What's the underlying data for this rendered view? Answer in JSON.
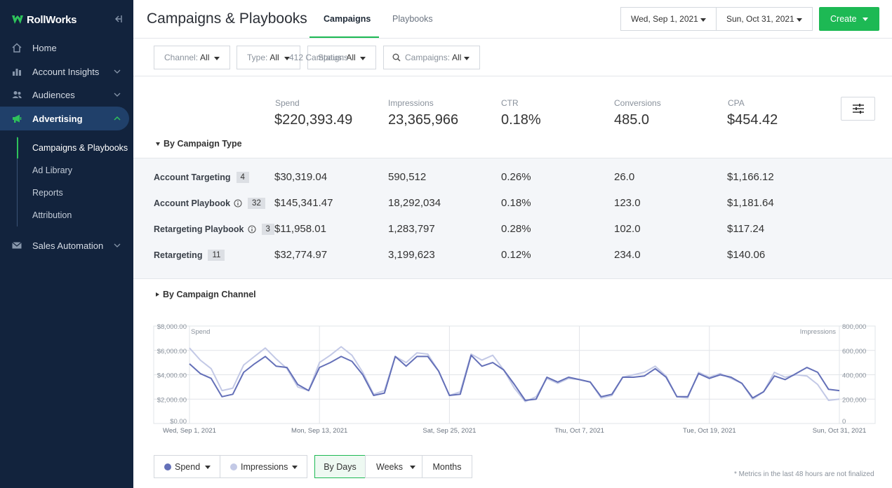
{
  "app": {
    "logo_text": "RollWorks"
  },
  "sidebar": {
    "items": [
      {
        "label": "Home",
        "icon": "home-icon"
      },
      {
        "label": "Account Insights",
        "icon": "bar-chart-icon"
      },
      {
        "label": "Audiences",
        "icon": "users-icon"
      },
      {
        "label": "Advertising",
        "icon": "megaphone-icon"
      },
      {
        "label": "Sales Automation",
        "icon": "mail-icon"
      }
    ],
    "advertising_sub": [
      "Campaigns & Playbooks",
      "Ad Library",
      "Reports",
      "Attribution"
    ]
  },
  "header": {
    "title": "Campaigns & Playbooks",
    "tabs": [
      "Campaigns",
      "Playbooks"
    ],
    "start_date": "Wed, Sep 1, 2021",
    "end_date": "Sun, Oct 31, 2021",
    "create_label": "Create"
  },
  "filters": {
    "channel": {
      "label": "Channel:",
      "value": "All"
    },
    "type": {
      "label": "Type:",
      "value": "All"
    },
    "status": {
      "label": "Status:",
      "value": "All"
    },
    "campaigns": {
      "label": "Campaigns:",
      "value": "All"
    },
    "count": "412 Campaigns"
  },
  "summary": {
    "metrics": [
      {
        "label": "Spend",
        "value": "$220,393.49"
      },
      {
        "label": "Impressions",
        "value": "23,365,966"
      },
      {
        "label": "CTR",
        "value": "0.18%"
      },
      {
        "label": "Conversions",
        "value": "485.0"
      },
      {
        "label": "CPA",
        "value": "$454.42"
      }
    ]
  },
  "by_type": {
    "label": "By Campaign Type",
    "rows": [
      {
        "name": "Account Targeting",
        "count": "4",
        "info": false,
        "spend": "$30,319.04",
        "impressions": "590,512",
        "ctr": "0.26%",
        "conversions": "26.0",
        "cpa": "$1,166.12"
      },
      {
        "name": "Account Playbook",
        "count": "32",
        "info": true,
        "spend": "$145,341.47",
        "impressions": "18,292,034",
        "ctr": "0.18%",
        "conversions": "123.0",
        "cpa": "$1,181.64"
      },
      {
        "name": "Retargeting Playbook",
        "count": "3",
        "info": true,
        "spend": "$11,958.01",
        "impressions": "1,283,797",
        "ctr": "0.28%",
        "conversions": "102.0",
        "cpa": "$117.24"
      },
      {
        "name": "Retargeting",
        "count": "11",
        "info": false,
        "spend": "$32,774.97",
        "impressions": "3,199,623",
        "ctr": "0.12%",
        "conversions": "234.0",
        "cpa": "$140.06"
      }
    ]
  },
  "by_channel": {
    "label": "By Campaign Channel"
  },
  "chart_data": {
    "type": "line",
    "left_axis_label": "Spend",
    "right_axis_label": "Impressions",
    "left_ticks": [
      "$8,000.00",
      "$6,000.00",
      "$4,000.00",
      "$2,000.00",
      "$0.00"
    ],
    "right_ticks": [
      "800,000",
      "600,000",
      "400,000",
      "200,000",
      "0"
    ],
    "x_ticks": [
      "Wed, Sep 1, 2021",
      "Mon, Sep 13, 2021",
      "Sat, Sep 25, 2021",
      "Thu, Oct 7, 2021",
      "Tue, Oct 19, 2021",
      "Sun, Oct 31, 2021"
    ],
    "ylim_left": [
      0,
      8000
    ],
    "ylim_right": [
      0,
      800000
    ],
    "series": [
      {
        "name": "Spend",
        "axis": "left",
        "color": "#6470b8",
        "values": [
          4900,
          4100,
          3700,
          2200,
          2400,
          4200,
          4900,
          5500,
          4700,
          4600,
          3200,
          2700,
          4600,
          5000,
          5500,
          5100,
          4000,
          2300,
          2500,
          5500,
          4700,
          5500,
          5500,
          4300,
          2300,
          2400,
          5600,
          4700,
          5000,
          4400,
          3200,
          1900,
          2000,
          3800,
          3400,
          3800,
          3600,
          3400,
          2200,
          2400,
          3800,
          3800,
          3900,
          4500,
          3800,
          2200,
          2200,
          4100,
          3700,
          4000,
          3800,
          3300,
          2100,
          2600,
          3900,
          3600,
          4100,
          4600,
          4200,
          2800,
          2700
        ]
      },
      {
        "name": "Impressions",
        "axis": "right",
        "color": "#c3c9e6",
        "values": [
          620000,
          520000,
          450000,
          270000,
          290000,
          480000,
          550000,
          620000,
          530000,
          450000,
          300000,
          270000,
          500000,
          560000,
          630000,
          560000,
          420000,
          240000,
          270000,
          550000,
          500000,
          580000,
          570000,
          430000,
          230000,
          260000,
          570000,
          520000,
          560000,
          440000,
          290000,
          180000,
          220000,
          370000,
          330000,
          370000,
          360000,
          340000,
          210000,
          230000,
          380000,
          400000,
          420000,
          470000,
          390000,
          220000,
          210000,
          420000,
          380000,
          410000,
          370000,
          330000,
          200000,
          260000,
          420000,
          380000,
          400000,
          390000,
          320000,
          190000,
          200000
        ]
      }
    ]
  },
  "chart_controls": {
    "spend_label": "Spend",
    "impressions_label": "Impressions",
    "by_days": "By Days",
    "weeks": "Weeks",
    "months": "Months"
  },
  "footnote": "* Metrics in the last 48 hours are not finalized"
}
